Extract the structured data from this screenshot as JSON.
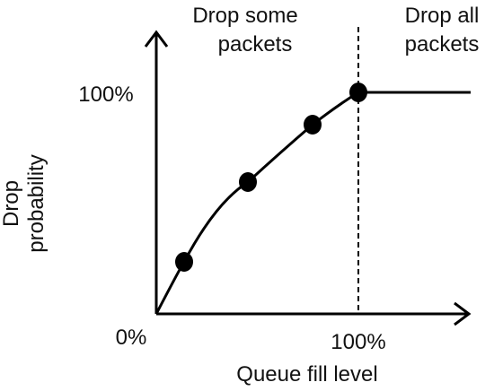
{
  "region_labels": {
    "left": [
      "Drop some",
      "packets"
    ],
    "right": [
      "Drop all",
      "packets"
    ]
  },
  "axes": {
    "y_label": [
      "Drop",
      "probability"
    ],
    "x_label": "Queue fill level",
    "y_tick_max": "100%",
    "origin_tick": "0%",
    "x_tick_max": "100%"
  },
  "curve": {
    "description_points": [
      {
        "x": 0,
        "y": 0
      },
      {
        "x": 0.13,
        "y": 0.25
      },
      {
        "x": 0.45,
        "y": 0.6
      },
      {
        "x": 0.78,
        "y": 0.86
      },
      {
        "x": 1.0,
        "y": 1.0
      }
    ],
    "flat_until_x": 1.6
  },
  "colors": {
    "ink": "#000000"
  }
}
